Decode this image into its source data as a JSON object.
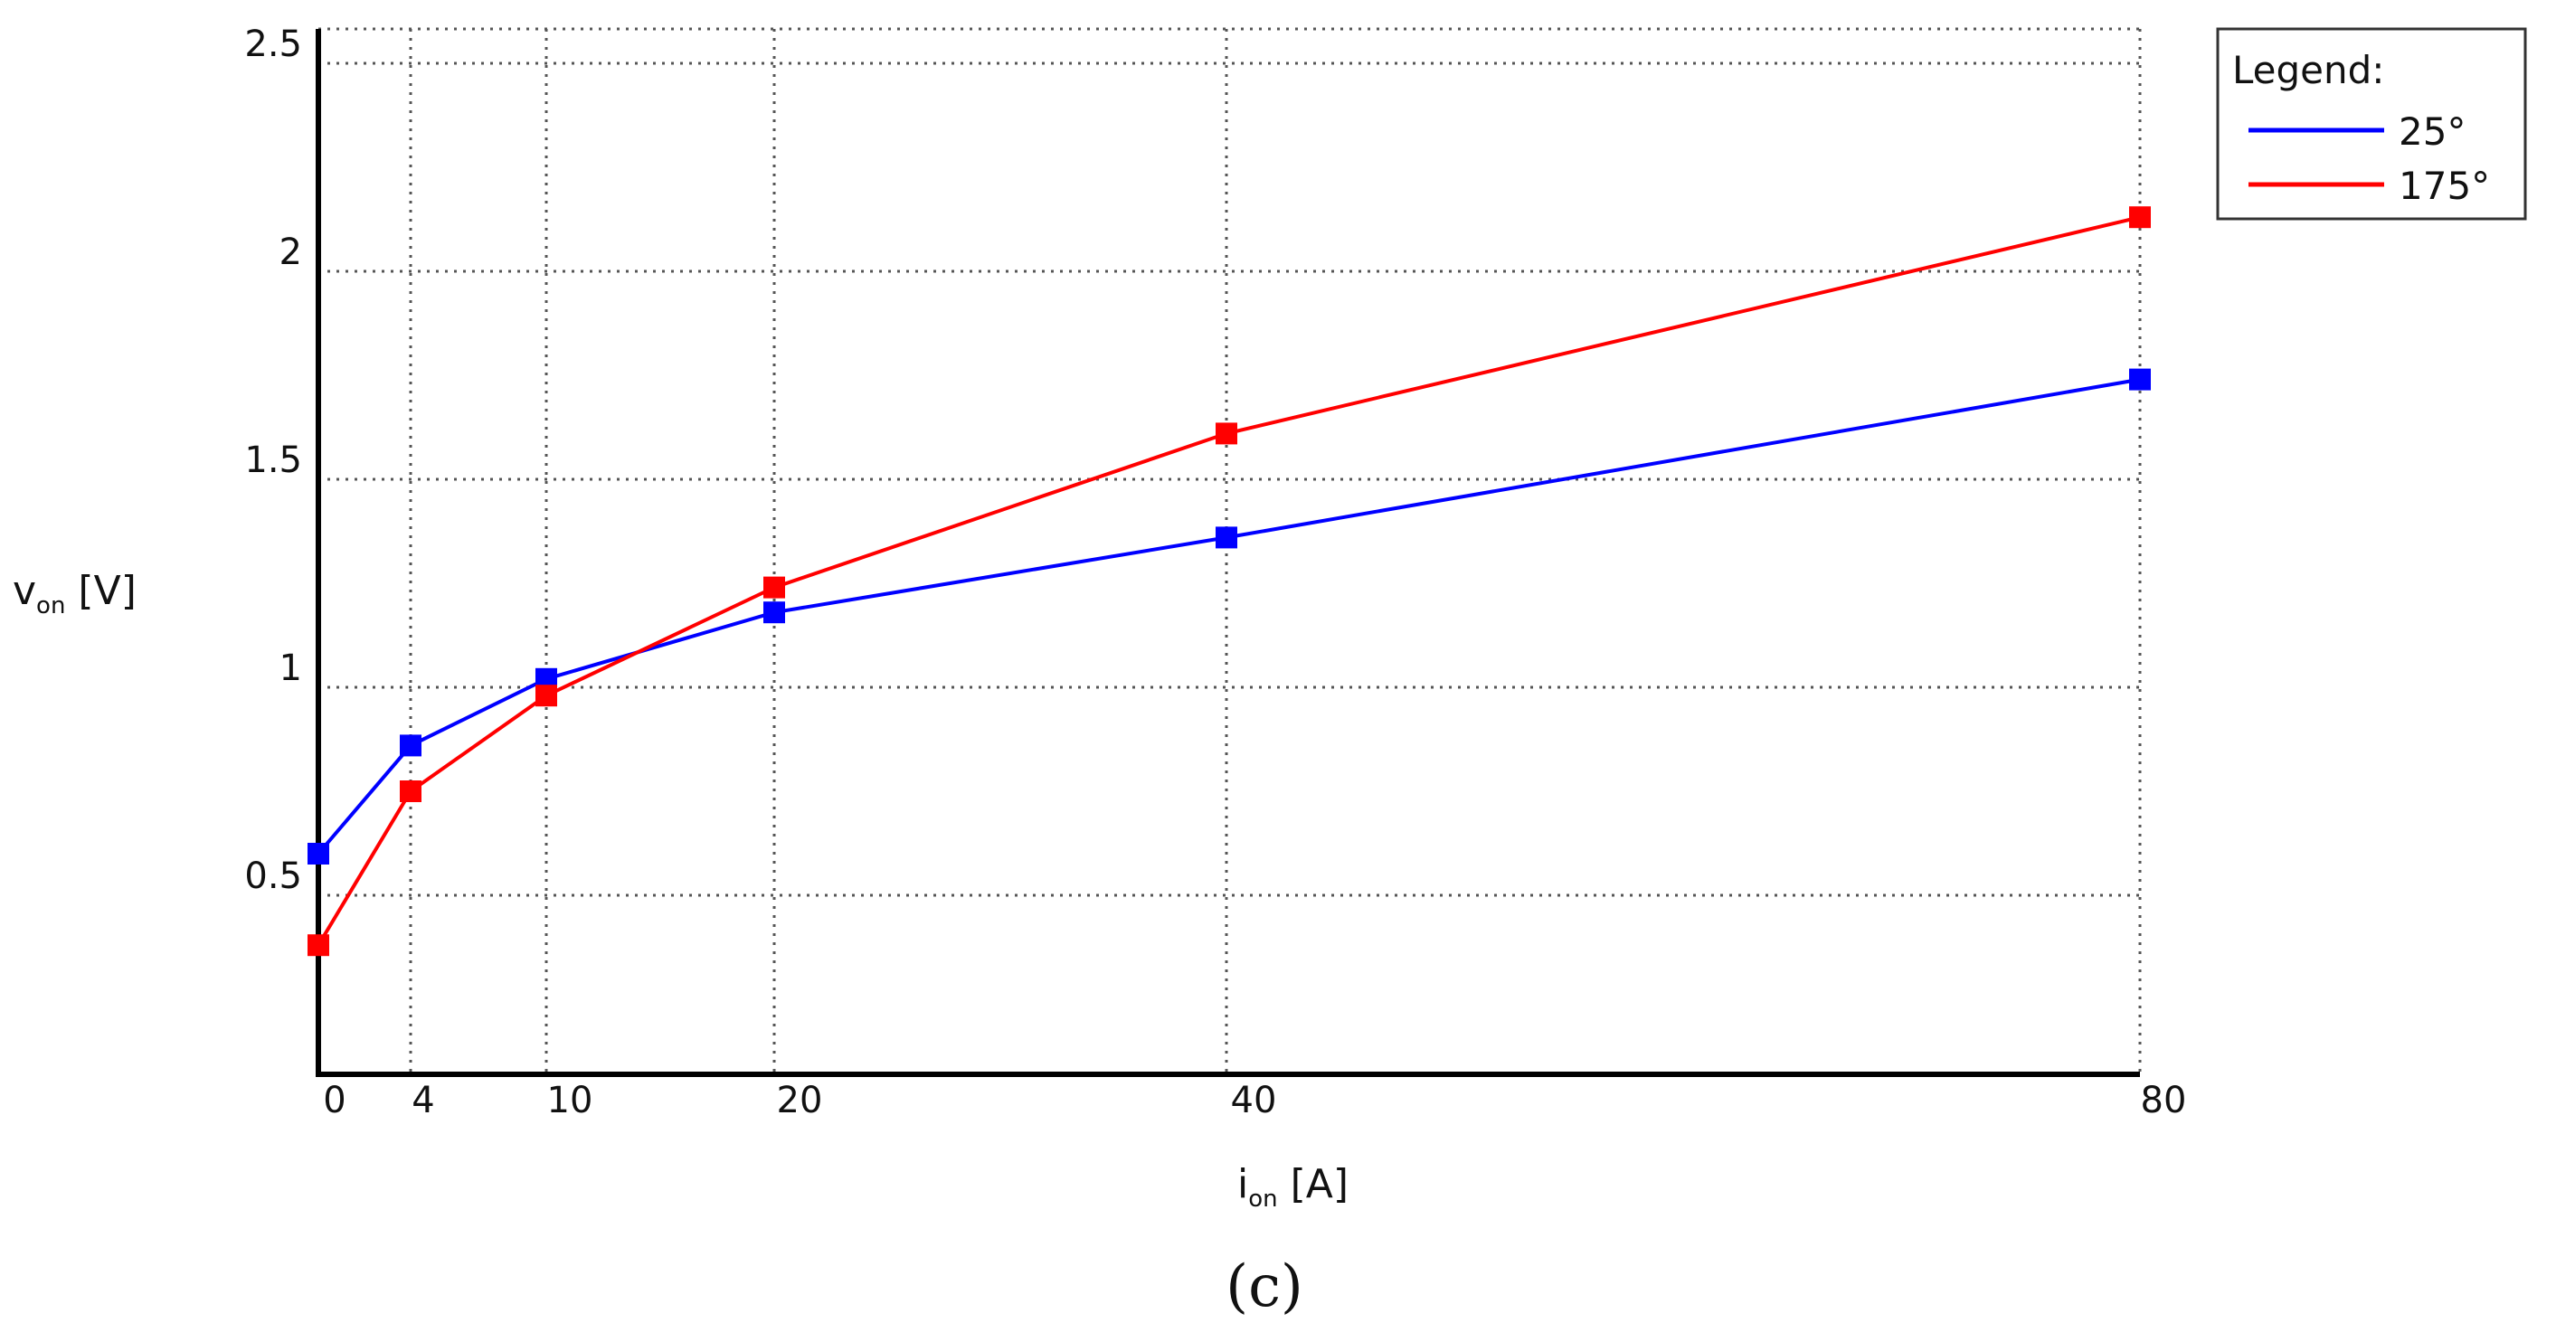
{
  "chart_data": {
    "type": "line",
    "x_ticks": [
      "0",
      "4",
      "10",
      "20",
      "40",
      "80"
    ],
    "y_ticks": [
      "0.5",
      "1",
      "1.5",
      "2",
      "2.5"
    ],
    "y_tick_values": [
      0.5,
      1,
      1.5,
      2,
      2.5
    ],
    "ylim": [
      0,
      2.5
    ],
    "grid": true,
    "xlabel": {
      "main": "i",
      "sub": "on",
      "unit": " [A]"
    },
    "ylabel": {
      "main": "v",
      "sub": "on",
      "unit": " [V]"
    },
    "legend": {
      "title": "Legend:",
      "placement": "top-right"
    },
    "series": [
      {
        "name": "25°",
        "color": "#0000ff",
        "x": [
          "0",
          "4",
          "10",
          "20",
          "40",
          "80"
        ],
        "values": [
          0.6,
          0.86,
          1.02,
          1.18,
          1.36,
          1.74
        ]
      },
      {
        "name": "175°",
        "color": "#ff0000",
        "x": [
          "0",
          "4",
          "10",
          "20",
          "40",
          "80"
        ],
        "values": [
          0.38,
          0.75,
          0.98,
          1.24,
          1.61,
          2.13
        ]
      }
    ],
    "caption": "(c)"
  }
}
